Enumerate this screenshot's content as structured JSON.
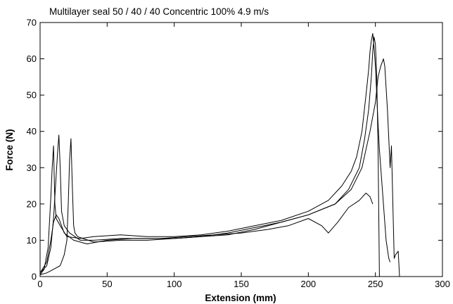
{
  "chart_data": {
    "type": "line",
    "title": "Multilayer seal 50 / 40 / 40 Concentric 100% 4.9 m/s",
    "xlabel": "Extension (mm)",
    "ylabel": "Force (N)",
    "xlim": [
      0,
      300
    ],
    "ylim": [
      0,
      70
    ],
    "xticks": [
      0,
      50,
      100,
      150,
      200,
      250,
      300
    ],
    "yticks": [
      0,
      10,
      20,
      30,
      40,
      50,
      60,
      70
    ],
    "grid": false,
    "series": [
      {
        "x": [
          0,
          3,
          6,
          8,
          9,
          10,
          11,
          12,
          15,
          20,
          30,
          40,
          60,
          80,
          100,
          120,
          140,
          160,
          180,
          200,
          215,
          225,
          232,
          236,
          240,
          243,
          245,
          246,
          247,
          248,
          249,
          250,
          251,
          252,
          253,
          255,
          258,
          260,
          261
        ],
        "y": [
          0.5,
          2,
          8,
          22,
          30,
          36,
          20,
          16,
          14,
          11,
          10.5,
          11,
          11.5,
          11,
          11,
          11.5,
          12.5,
          14,
          15.5,
          18,
          21,
          25,
          29,
          33,
          40,
          50,
          57,
          62,
          65,
          67,
          63,
          58,
          50,
          42,
          35,
          25,
          10,
          5,
          4
        ]
      },
      {
        "x": [
          0,
          5,
          8,
          10,
          12,
          13,
          14,
          15,
          16,
          18,
          22,
          30,
          40,
          60,
          80,
          100,
          120,
          140,
          160,
          180,
          200,
          220,
          230,
          238,
          242,
          245,
          247,
          248,
          249,
          250,
          251,
          252,
          253
        ],
        "y": [
          1,
          3,
          8,
          16,
          28,
          34,
          39,
          30,
          18,
          14,
          12,
          10,
          10,
          10.5,
          10.5,
          10.5,
          11,
          12,
          13.5,
          15,
          17,
          20,
          24,
          30,
          38,
          46,
          55,
          62,
          66,
          64,
          55,
          35,
          0
        ]
      },
      {
        "x": [
          0,
          5,
          10,
          15,
          18,
          20,
          21,
          22,
          23,
          24,
          25,
          26,
          28,
          32,
          40,
          60,
          80,
          100,
          120,
          140,
          160,
          180,
          200,
          220,
          232,
          240,
          246,
          250,
          252,
          254,
          256,
          257,
          258,
          259,
          260,
          261,
          262,
          263,
          264,
          265,
          267,
          268
        ],
        "y": [
          0.5,
          1,
          2,
          3,
          6,
          10,
          20,
          32,
          38,
          25,
          14,
          12,
          11,
          10.5,
          9.5,
          10,
          10,
          10.5,
          11,
          11.5,
          13,
          15,
          17,
          20,
          24,
          30,
          40,
          48,
          55,
          58,
          60,
          58,
          52,
          46,
          38,
          30,
          36,
          20,
          5,
          6,
          7,
          0
        ]
      },
      {
        "x": [
          0,
          5,
          8,
          10,
          12,
          14,
          18,
          25,
          35,
          50,
          70,
          90,
          110,
          130,
          150,
          170,
          185,
          200,
          210,
          215,
          222,
          230,
          238,
          243,
          246,
          248
        ],
        "y": [
          1,
          4,
          10,
          15,
          17,
          16,
          12,
          10,
          9,
          10,
          10.5,
          10.5,
          11,
          11.5,
          12,
          13,
          14,
          16,
          14,
          12,
          15,
          19,
          21,
          23,
          22,
          20
        ]
      }
    ]
  }
}
